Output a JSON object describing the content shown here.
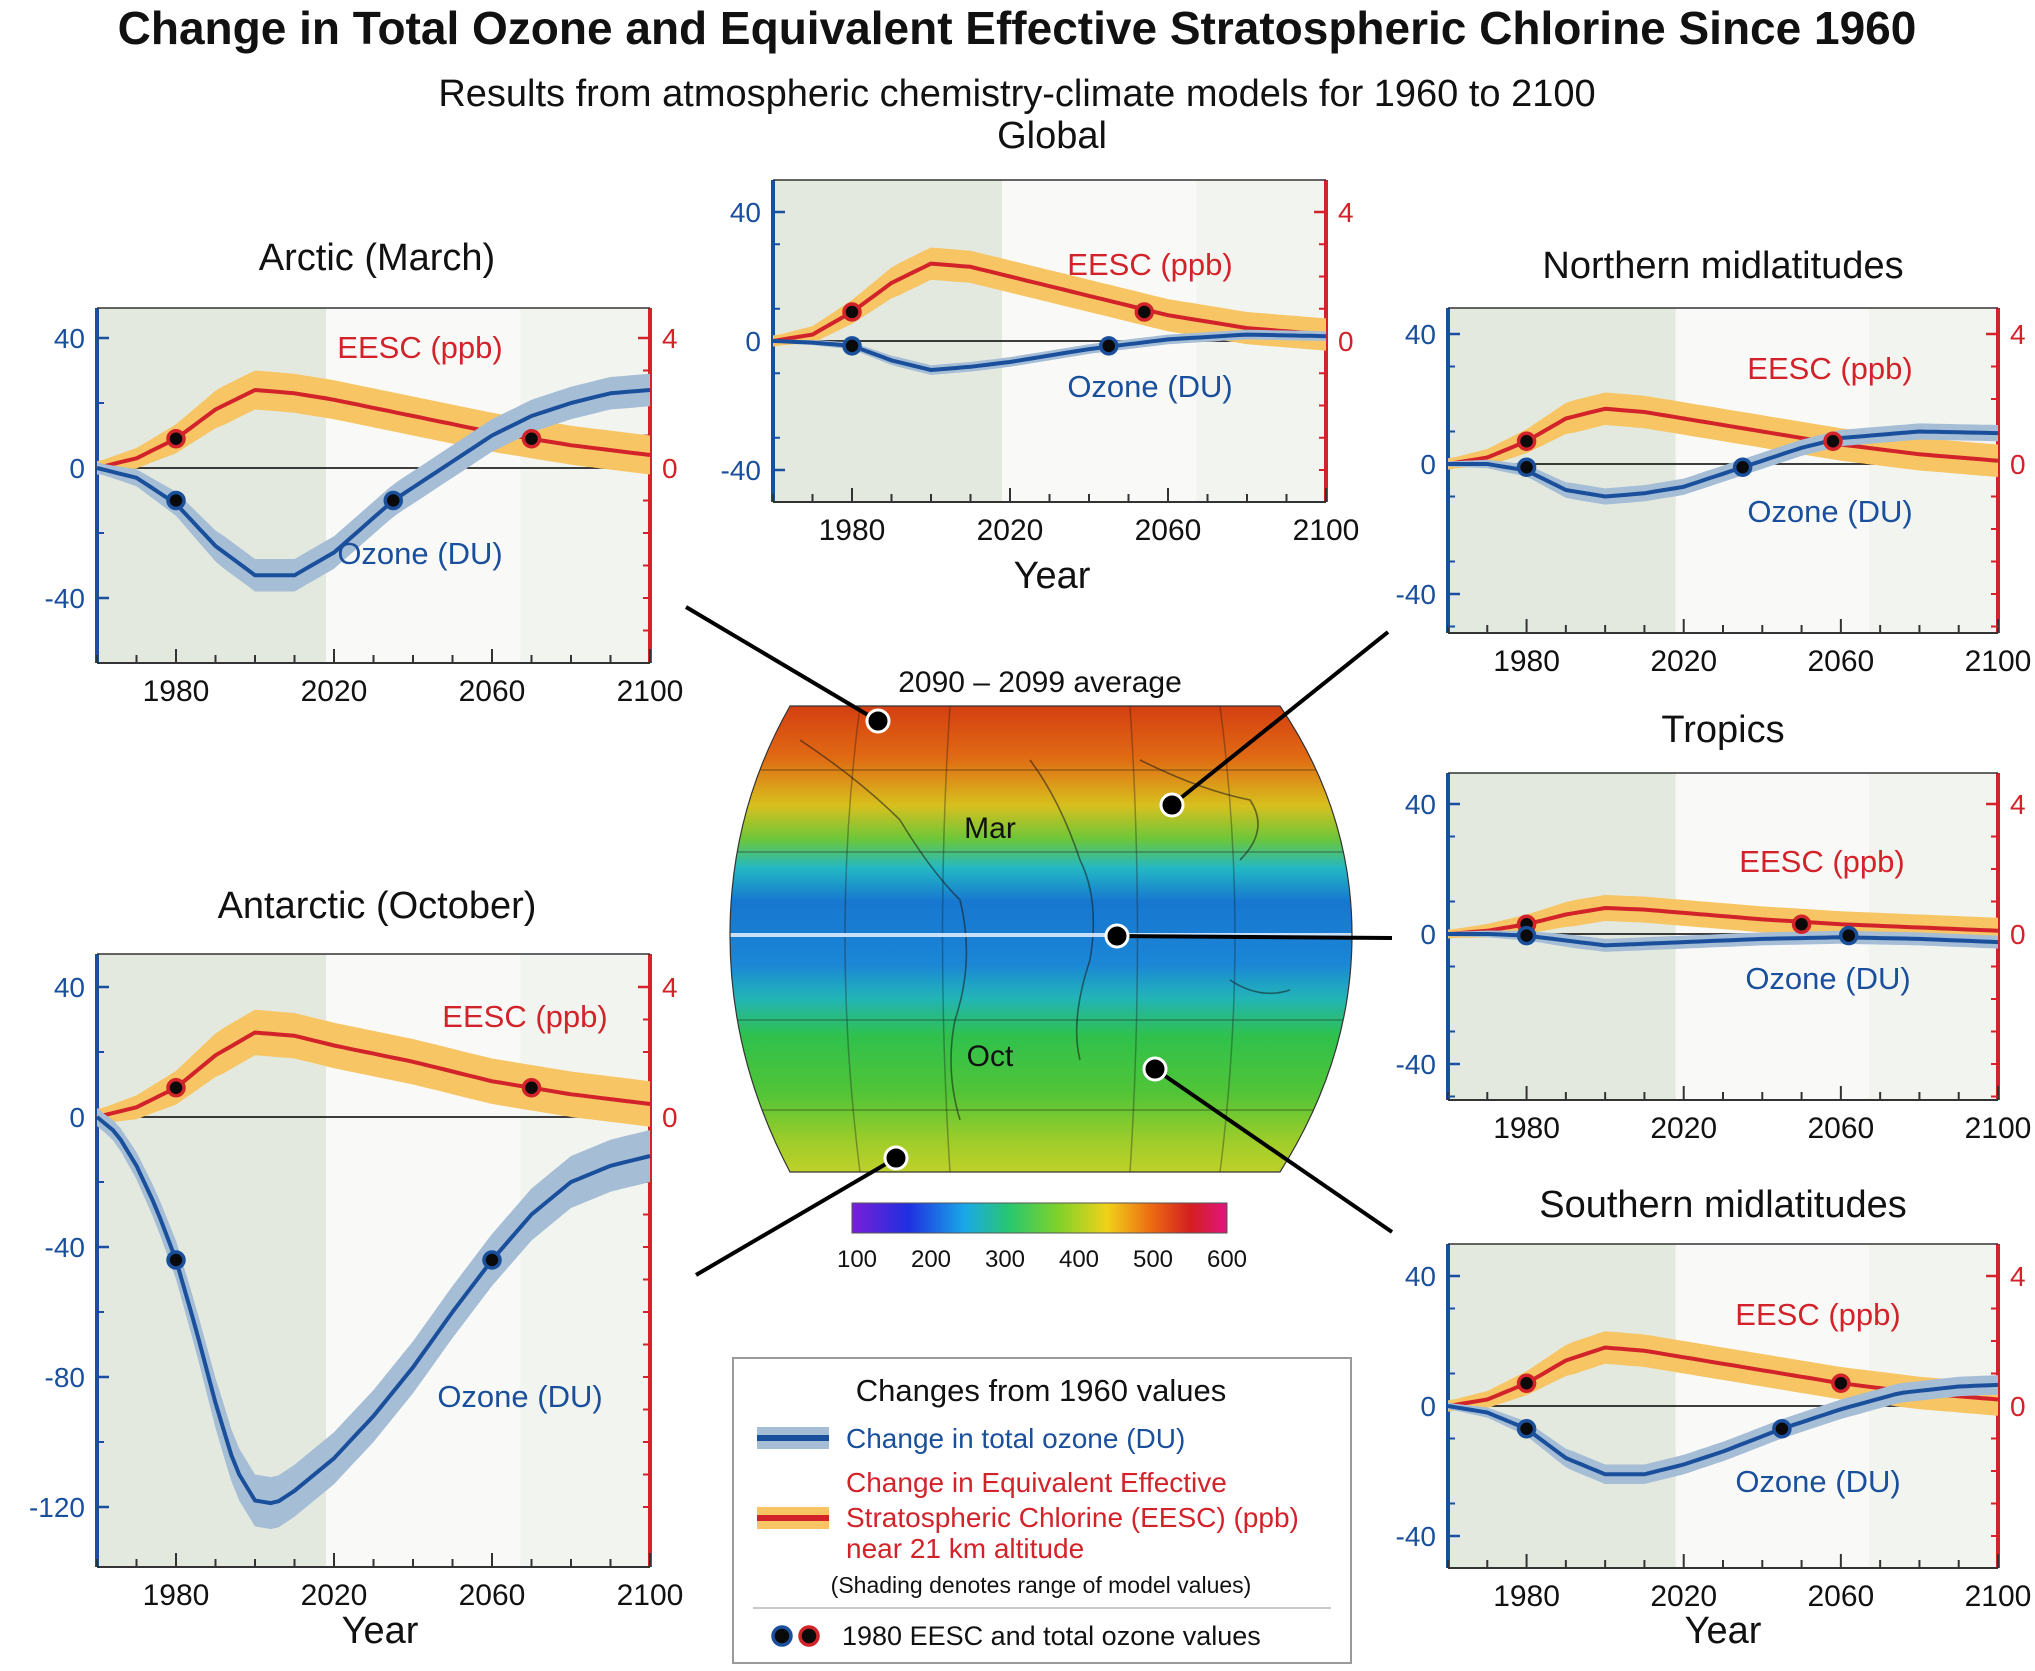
{
  "header": {
    "title": "Change in Total Ozone and Equivalent Effective Stratospheric Chlorine Since 1960",
    "subtitle": "Results from atmospheric chemistry-climate models for 1960 to 2100"
  },
  "colors": {
    "ozone_line": "#1a4f9c",
    "ozone_band": "#a6bdd6",
    "eesc_line": "#d2232a",
    "eesc_band": "#f7c564",
    "past_shade": "#e3e9df",
    "future_shade": "#f2f4ef"
  },
  "map": {
    "title": "2090 – 2099 average",
    "label_north": "Mar",
    "label_south": "Oct",
    "colorbar_ticks": [
      "100",
      "200",
      "300",
      "400",
      "500",
      "600"
    ]
  },
  "legend": {
    "title": "Changes from 1960 values",
    "ozone_label": "Change in total ozone (DU)",
    "eesc_lines": [
      "Change in Equivalent Effective",
      "Stratospheric Chlorine (EESC) (ppb)",
      "near 21 km altitude"
    ],
    "shading_note": "(Shading denotes range of model values)",
    "dots_label": "1980 EESC and total ozone values"
  },
  "chart_data": [
    {
      "id": "global",
      "type": "line",
      "title": "Global",
      "xlabel": "Year",
      "xlim": [
        1960,
        2100
      ],
      "xticks": [
        "1980",
        "2020",
        "2060",
        "2100"
      ],
      "ylim_left": [
        -50,
        50
      ],
      "yticks_left": [
        "40",
        "0",
        "-40"
      ],
      "ylim_right": [
        -5,
        5
      ],
      "yticks_right": [
        "4",
        "0"
      ],
      "past_shade_until": 2018,
      "eesc_label": "EESC (ppb)",
      "ozone_label": "Ozone (DU)",
      "eesc": {
        "x": [
          1960,
          1970,
          1980,
          1990,
          2000,
          2010,
          2020,
          2040,
          2060,
          2080,
          2100
        ],
        "y": [
          0,
          0.2,
          0.9,
          1.8,
          2.4,
          2.3,
          2.0,
          1.4,
          0.8,
          0.4,
          0.2
        ],
        "band": 0.5
      },
      "ozone": {
        "x": [
          1960,
          1970,
          1980,
          1990,
          2000,
          2010,
          2020,
          2040,
          2060,
          2080,
          2100
        ],
        "y": [
          0,
          -0.5,
          -1.5,
          -6,
          -9,
          -8,
          -6.5,
          -2.5,
          0.5,
          2,
          1.5
        ],
        "band": 1.5
      },
      "markers": {
        "year_eesc": [
          1980,
          2054
        ],
        "eesc_value": 0.9,
        "year_ozone": [
          1980,
          2045
        ],
        "ozone_value": -1.5
      }
    },
    {
      "id": "arctic",
      "type": "line",
      "title": "Arctic (March)",
      "xlabel": "",
      "xlim": [
        1960,
        2100
      ],
      "xticks": [
        "1980",
        "2020",
        "2060",
        "2100"
      ],
      "ylim_left": [
        -60,
        50
      ],
      "yticks_left": [
        "40",
        "0",
        "-40"
      ],
      "ylim_right": [
        -6,
        5
      ],
      "yticks_right": [
        "4",
        "0"
      ],
      "past_shade_until": 2018,
      "eesc_label": "EESC (ppb)",
      "ozone_label": "Ozone (DU)",
      "eesc": {
        "x": [
          1960,
          1970,
          1980,
          1990,
          2000,
          2010,
          2020,
          2040,
          2060,
          2080,
          2100
        ],
        "y": [
          0,
          0.3,
          0.9,
          1.8,
          2.4,
          2.3,
          2.1,
          1.6,
          1.1,
          0.7,
          0.4
        ],
        "band": 0.6
      },
      "ozone": {
        "x": [
          1960,
          1970,
          1980,
          1990,
          2000,
          2010,
          2020,
          2035,
          2050,
          2060,
          2070,
          2080,
          2090,
          2100
        ],
        "y": [
          0,
          -3,
          -11,
          -24,
          -33,
          -33,
          -26,
          -10,
          2,
          10,
          16,
          20,
          23,
          24
        ],
        "band": 5
      },
      "markers": {
        "year_eesc": [
          1980,
          2070
        ],
        "eesc_value": 0.9,
        "year_ozone": [
          1980,
          2035
        ],
        "ozone_value": -10
      }
    },
    {
      "id": "antarctic",
      "type": "line",
      "title": "Antarctic (October)",
      "xlabel": "Year",
      "xlim": [
        1960,
        2100
      ],
      "xticks": [
        "1980",
        "2020",
        "2060",
        "2100"
      ],
      "ylim_left": [
        -140,
        50
      ],
      "yticks_left": [
        "40",
        "0",
        "-40",
        "-80",
        "-120"
      ],
      "ylim_right": [
        -14,
        5
      ],
      "yticks_right": [
        "4",
        "0"
      ],
      "past_shade_until": 2018,
      "eesc_label": "EESC (ppb)",
      "ozone_label": "Ozone (DU)",
      "eesc": {
        "x": [
          1960,
          1970,
          1980,
          1990,
          2000,
          2010,
          2020,
          2040,
          2060,
          2080,
          2100
        ],
        "y": [
          0,
          0.3,
          0.9,
          1.9,
          2.6,
          2.5,
          2.2,
          1.7,
          1.1,
          0.7,
          0.4
        ],
        "band": 0.7
      },
      "ozone": {
        "x": [
          1960,
          1965,
          1970,
          1975,
          1980,
          1985,
          1990,
          1995,
          2000,
          2005,
          2010,
          2020,
          2030,
          2040,
          2050,
          2060,
          2070,
          2080,
          2090,
          2100
        ],
        "y": [
          0,
          -5,
          -15,
          -28,
          -44,
          -65,
          -88,
          -108,
          -118,
          -119,
          -115,
          -105,
          -92,
          -77,
          -60,
          -44,
          -30,
          -20,
          -15,
          -12
        ],
        "band": 8
      },
      "markers": {
        "year_eesc": [
          1980,
          2070
        ],
        "eesc_value": 0.9,
        "year_ozone": [
          1980,
          2060
        ],
        "ozone_value": -44
      }
    },
    {
      "id": "northern",
      "type": "line",
      "title": "Northern midlatitudes",
      "xlabel": "",
      "xlim": [
        1960,
        2100
      ],
      "xticks": [
        "1980",
        "2020",
        "2060",
        "2100"
      ],
      "ylim_left": [
        -50,
        50
      ],
      "yticks_left": [
        "40",
        "0",
        "-40"
      ],
      "ylim_right": [
        -5,
        5
      ],
      "yticks_right": [
        "4",
        "0"
      ],
      "past_shade_until": 2018,
      "eesc_label": "EESC (ppb)",
      "ozone_label": "Ozone (DU)",
      "eesc": {
        "x": [
          1960,
          1970,
          1980,
          1990,
          2000,
          2010,
          2020,
          2040,
          2060,
          2080,
          2100
        ],
        "y": [
          0,
          0.2,
          0.7,
          1.4,
          1.7,
          1.6,
          1.4,
          1.0,
          0.6,
          0.3,
          0.1
        ],
        "band": 0.5
      },
      "ozone": {
        "x": [
          1960,
          1970,
          1980,
          1990,
          2000,
          2010,
          2020,
          2035,
          2050,
          2060,
          2080,
          2100
        ],
        "y": [
          0,
          0,
          -2,
          -8,
          -10,
          -9,
          -7,
          -1,
          5,
          8,
          10,
          9.5
        ],
        "band": 2.5
      },
      "markers": {
        "year_eesc": [
          1980,
          2058
        ],
        "eesc_value": 0.7,
        "year_ozone": [
          1980,
          2035
        ],
        "ozone_value": -1
      }
    },
    {
      "id": "tropics",
      "type": "line",
      "title": "Tropics",
      "xlabel": "",
      "xlim": [
        1960,
        2100
      ],
      "xticks": [
        "1980",
        "2020",
        "2060",
        "2100"
      ],
      "ylim_left": [
        -50,
        50
      ],
      "yticks_left": [
        "40",
        "0",
        "-40"
      ],
      "ylim_right": [
        -5,
        5
      ],
      "yticks_right": [
        "4",
        "0"
      ],
      "past_shade_until": 2018,
      "eesc_label": "EESC (ppb)",
      "ozone_label": "Ozone (DU)",
      "eesc": {
        "x": [
          1960,
          1970,
          1980,
          1990,
          2000,
          2010,
          2020,
          2040,
          2060,
          2080,
          2100
        ],
        "y": [
          0,
          0.1,
          0.3,
          0.6,
          0.8,
          0.75,
          0.65,
          0.45,
          0.3,
          0.2,
          0.1
        ],
        "band": 0.4
      },
      "ozone": {
        "x": [
          1960,
          1970,
          1980,
          1990,
          2000,
          2020,
          2040,
          2060,
          2080,
          2100
        ],
        "y": [
          0,
          0,
          -0.5,
          -2,
          -3.5,
          -2.5,
          -1.5,
          -1,
          -1.5,
          -2.5
        ],
        "band": 2
      },
      "markers": {
        "year_eesc": [
          1980,
          2050
        ],
        "eesc_value": 0.3,
        "year_ozone": [
          1980,
          2062
        ],
        "ozone_value": -0.5
      }
    },
    {
      "id": "southern",
      "type": "line",
      "title": "Southern midlatitudes",
      "xlabel": "Year",
      "xlim": [
        1960,
        2100
      ],
      "xticks": [
        "1980",
        "2020",
        "2060",
        "2100"
      ],
      "ylim_left": [
        -50,
        50
      ],
      "yticks_left": [
        "40",
        "0",
        "-40"
      ],
      "ylim_right": [
        -5,
        5
      ],
      "yticks_right": [
        "4",
        "0"
      ],
      "past_shade_until": 2018,
      "eesc_label": "EESC (ppb)",
      "ozone_label": "Ozone (DU)",
      "eesc": {
        "x": [
          1960,
          1970,
          1980,
          1990,
          2000,
          2010,
          2020,
          2040,
          2060,
          2080,
          2100
        ],
        "y": [
          0,
          0.2,
          0.7,
          1.4,
          1.8,
          1.7,
          1.5,
          1.1,
          0.7,
          0.4,
          0.2
        ],
        "band": 0.5
      },
      "ozone": {
        "x": [
          1960,
          1970,
          1980,
          1990,
          2000,
          2010,
          2020,
          2030,
          2045,
          2060,
          2075,
          2090,
          2100
        ],
        "y": [
          0,
          -2,
          -7,
          -16,
          -21,
          -21,
          -18,
          -14,
          -7,
          -1,
          4,
          6,
          6.5
        ],
        "band": 3
      },
      "markers": {
        "year_eesc": [
          1980,
          2060
        ],
        "eesc_value": 0.7,
        "year_ozone": [
          1980,
          2045
        ],
        "ozone_value": -7
      }
    }
  ]
}
